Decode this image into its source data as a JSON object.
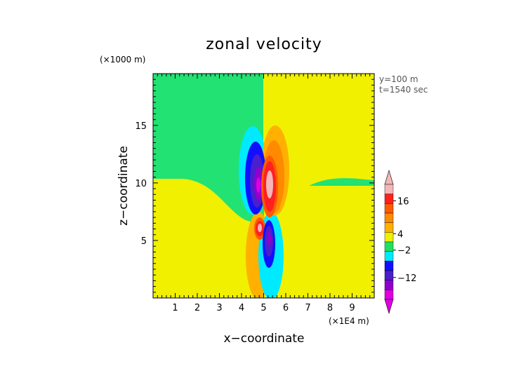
{
  "chart_data": {
    "type": "heatmap",
    "title": "zonal velocity",
    "xlabel": "x−coordinate",
    "ylabel": "z−coordinate",
    "x_multiplier": "(×1E4 m)",
    "y_multiplier": "(×1000 m)",
    "annotations": [
      "y=100 m",
      "t=1540 sec"
    ],
    "x_ticks": [
      "1",
      "2",
      "3",
      "4",
      "5",
      "6",
      "7",
      "8",
      "9"
    ],
    "y_ticks": [
      "5",
      "10",
      "15"
    ],
    "xlim": [
      0,
      10
    ],
    "ylim": [
      0,
      19.5
    ],
    "colorbar": {
      "tick_labels": [
        "16",
        "4",
        "−2",
        "−12"
      ],
      "tick_values": [
        16,
        4,
        -2,
        -12
      ],
      "colors_top_to_bottom": [
        "#f4b6b6",
        "#ff2020",
        "#ff5a00",
        "#ff8a00",
        "#ffb000",
        "#f0f000",
        "#20e060",
        "#00eaff",
        "#1010ff",
        "#4a1fcc",
        "#9000cc",
        "#e000e0"
      ]
    },
    "regions": [
      {
        "label": "background upper-left (negative)",
        "value": -1,
        "color": "#22e273"
      },
      {
        "label": "background upper-right (positive)",
        "value": 1,
        "color": "#f0f000"
      },
      {
        "label": "lower background (positive)",
        "value": 1,
        "color": "#f0f000"
      },
      {
        "label": "upper core negative (blue)",
        "value": -12,
        "color": "#1010ff"
      },
      {
        "label": "upper core positive (red)",
        "value": 16,
        "color": "#ff2020"
      },
      {
        "label": "lower core negative (blue)",
        "value": -12,
        "color": "#1010ff"
      },
      {
        "label": "lower core positive (red)",
        "value": 16,
        "color": "#ff2020"
      }
    ]
  }
}
